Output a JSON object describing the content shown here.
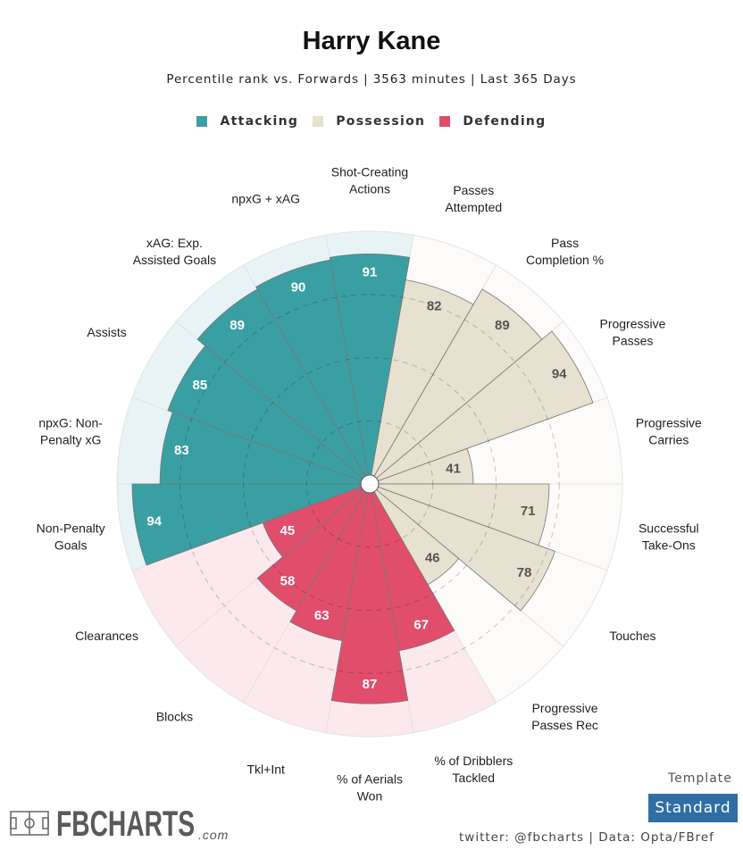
{
  "chart_data": {
    "type": "polar_bar",
    "title": "Harry Kane",
    "subtitle": "Percentile rank vs. Forwards | 3563 minutes | Last 365 Days",
    "rlim": [
      0,
      100
    ],
    "rticks": [
      25,
      50,
      75
    ],
    "series": [
      {
        "name": "Attacking",
        "color": "#3a9fa3",
        "categories": [
          "Non-Penalty\nGoals",
          "npxG: Non-\nPenalty xG",
          "Assists",
          "xAG: Exp.\nAssisted Goals",
          "npxG + xAG",
          "Shot-Creating\nActions"
        ],
        "values": [
          94,
          83,
          85,
          89,
          90,
          91
        ]
      },
      {
        "name": "Possession",
        "color": "#e6e1d0",
        "categories": [
          "Passes\nAttempted",
          "Pass\nCompletion %",
          "Progressive\nPasses",
          "Progressive\nCarries",
          "Successful\nTake-Ons",
          "Touches",
          "Progressive\nPasses Rec"
        ],
        "values": [
          82,
          89,
          94,
          41,
          71,
          78,
          46
        ]
      },
      {
        "name": "Defending",
        "color": "#e04e6c",
        "categories": [
          "% of Dribblers\nTackled",
          "% of Aerials\nWon",
          "Tkl+Int",
          "Blocks",
          "Clearances"
        ],
        "values": [
          67,
          87,
          63,
          58,
          45
        ]
      }
    ]
  },
  "footer": {
    "template_label": "Template",
    "template": "Standard",
    "logo": "FBCHARTS",
    "logo_suffix": ".com",
    "credits": "twitter: @fbcharts | Data: Opta/FBref"
  }
}
